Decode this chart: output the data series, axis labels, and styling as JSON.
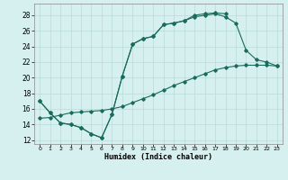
{
  "title": "",
  "xlabel": "Humidex (Indice chaleur)",
  "bg_color": "#d6f0ef",
  "grid_color": "#b8dbd8",
  "line_color": "#1a6b5a",
  "xlim": [
    -0.5,
    23.5
  ],
  "ylim": [
    11.5,
    29.5
  ],
  "xticks": [
    0,
    1,
    2,
    3,
    4,
    5,
    6,
    7,
    8,
    9,
    10,
    11,
    12,
    13,
    14,
    15,
    16,
    17,
    18,
    19,
    20,
    21,
    22,
    23
  ],
  "yticks": [
    12,
    14,
    16,
    18,
    20,
    22,
    24,
    26,
    28
  ],
  "series1_x": [
    0,
    1,
    2,
    3,
    4,
    5,
    6,
    7,
    8,
    9,
    10,
    11,
    12,
    13,
    14,
    15,
    16,
    17,
    18
  ],
  "series1_y": [
    17.0,
    15.5,
    14.2,
    14.0,
    13.6,
    12.8,
    12.3,
    15.3,
    20.2,
    24.3,
    25.0,
    25.3,
    26.8,
    27.0,
    27.3,
    28.0,
    28.2,
    28.3,
    28.2
  ],
  "series2_x": [
    0,
    1,
    2,
    3,
    4,
    5,
    6,
    7,
    8,
    9,
    10,
    11,
    12,
    13,
    14,
    15,
    16,
    17,
    18,
    19,
    20,
    21,
    22,
    23
  ],
  "series2_y": [
    17.0,
    15.5,
    14.2,
    14.0,
    13.6,
    12.8,
    12.3,
    15.3,
    20.2,
    24.3,
    25.0,
    25.3,
    26.8,
    27.0,
    27.3,
    27.8,
    28.0,
    28.2,
    27.8,
    27.0,
    23.5,
    22.3,
    22.0,
    21.5
  ],
  "series3_x": [
    0,
    1,
    2,
    3,
    4,
    5,
    6,
    7,
    8,
    9,
    10,
    11,
    12,
    13,
    14,
    15,
    16,
    17,
    18,
    19,
    20,
    21,
    22,
    23
  ],
  "series3_y": [
    14.8,
    14.9,
    15.2,
    15.5,
    15.6,
    15.7,
    15.8,
    16.0,
    16.3,
    16.8,
    17.3,
    17.8,
    18.4,
    19.0,
    19.5,
    20.0,
    20.5,
    21.0,
    21.3,
    21.5,
    21.6,
    21.6,
    21.6,
    21.5
  ]
}
